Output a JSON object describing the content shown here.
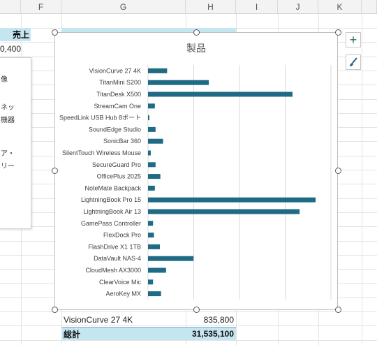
{
  "columns": [
    "F",
    "G",
    "H",
    "I",
    "J",
    "K"
  ],
  "left_cells": {
    "header_fragment": "売上",
    "value_fragment": "0,400"
  },
  "pane_lines": [
    "像",
    "ネッ",
    "機器",
    "ア・",
    "リー"
  ],
  "chart_buttons": {
    "add": "+",
    "style": "brush"
  },
  "bottom_rows": {
    "item_label": "VisionCurve 27 4K",
    "item_value": "835,800",
    "total_label": "総計",
    "total_value": "31,535,100"
  },
  "colors": {
    "bar": "#1f6b85",
    "header_fill": "#c5e6f1",
    "accent_green": "#217346"
  },
  "chart_data": {
    "type": "bar",
    "orientation": "horizontal",
    "title": "製品",
    "categories": [
      "VisionCurve 27 4K",
      "TitanMini S200",
      "TitanDesk X500",
      "StreamCam One",
      "SpeedLink USB Hub 8ポート",
      "SoundEdge Studio",
      "SonicBar 360",
      "SilentTouch Wireless Mouse",
      "SecureGuard Pro",
      "OfficePlus 2025",
      "NoteMate Backpack",
      "LightningBook Pro 15",
      "LightningBook Air 13",
      "GamePass Controller",
      "FlexDock Pro",
      "FlashDrive X1 1TB",
      "DataVault NAS-4",
      "CloudMesh AX3000",
      "ClearVoice Mic",
      "AeroKey MX"
    ],
    "values": [
      835800,
      2660000,
      6320000,
      300000,
      60000,
      330000,
      660000,
      120000,
      330000,
      540000,
      300000,
      7330000,
      6630000,
      220000,
      260000,
      520000,
      1990000,
      790000,
      220000,
      570000
    ],
    "xlim": [
      0,
      8000000
    ],
    "grid": true
  }
}
